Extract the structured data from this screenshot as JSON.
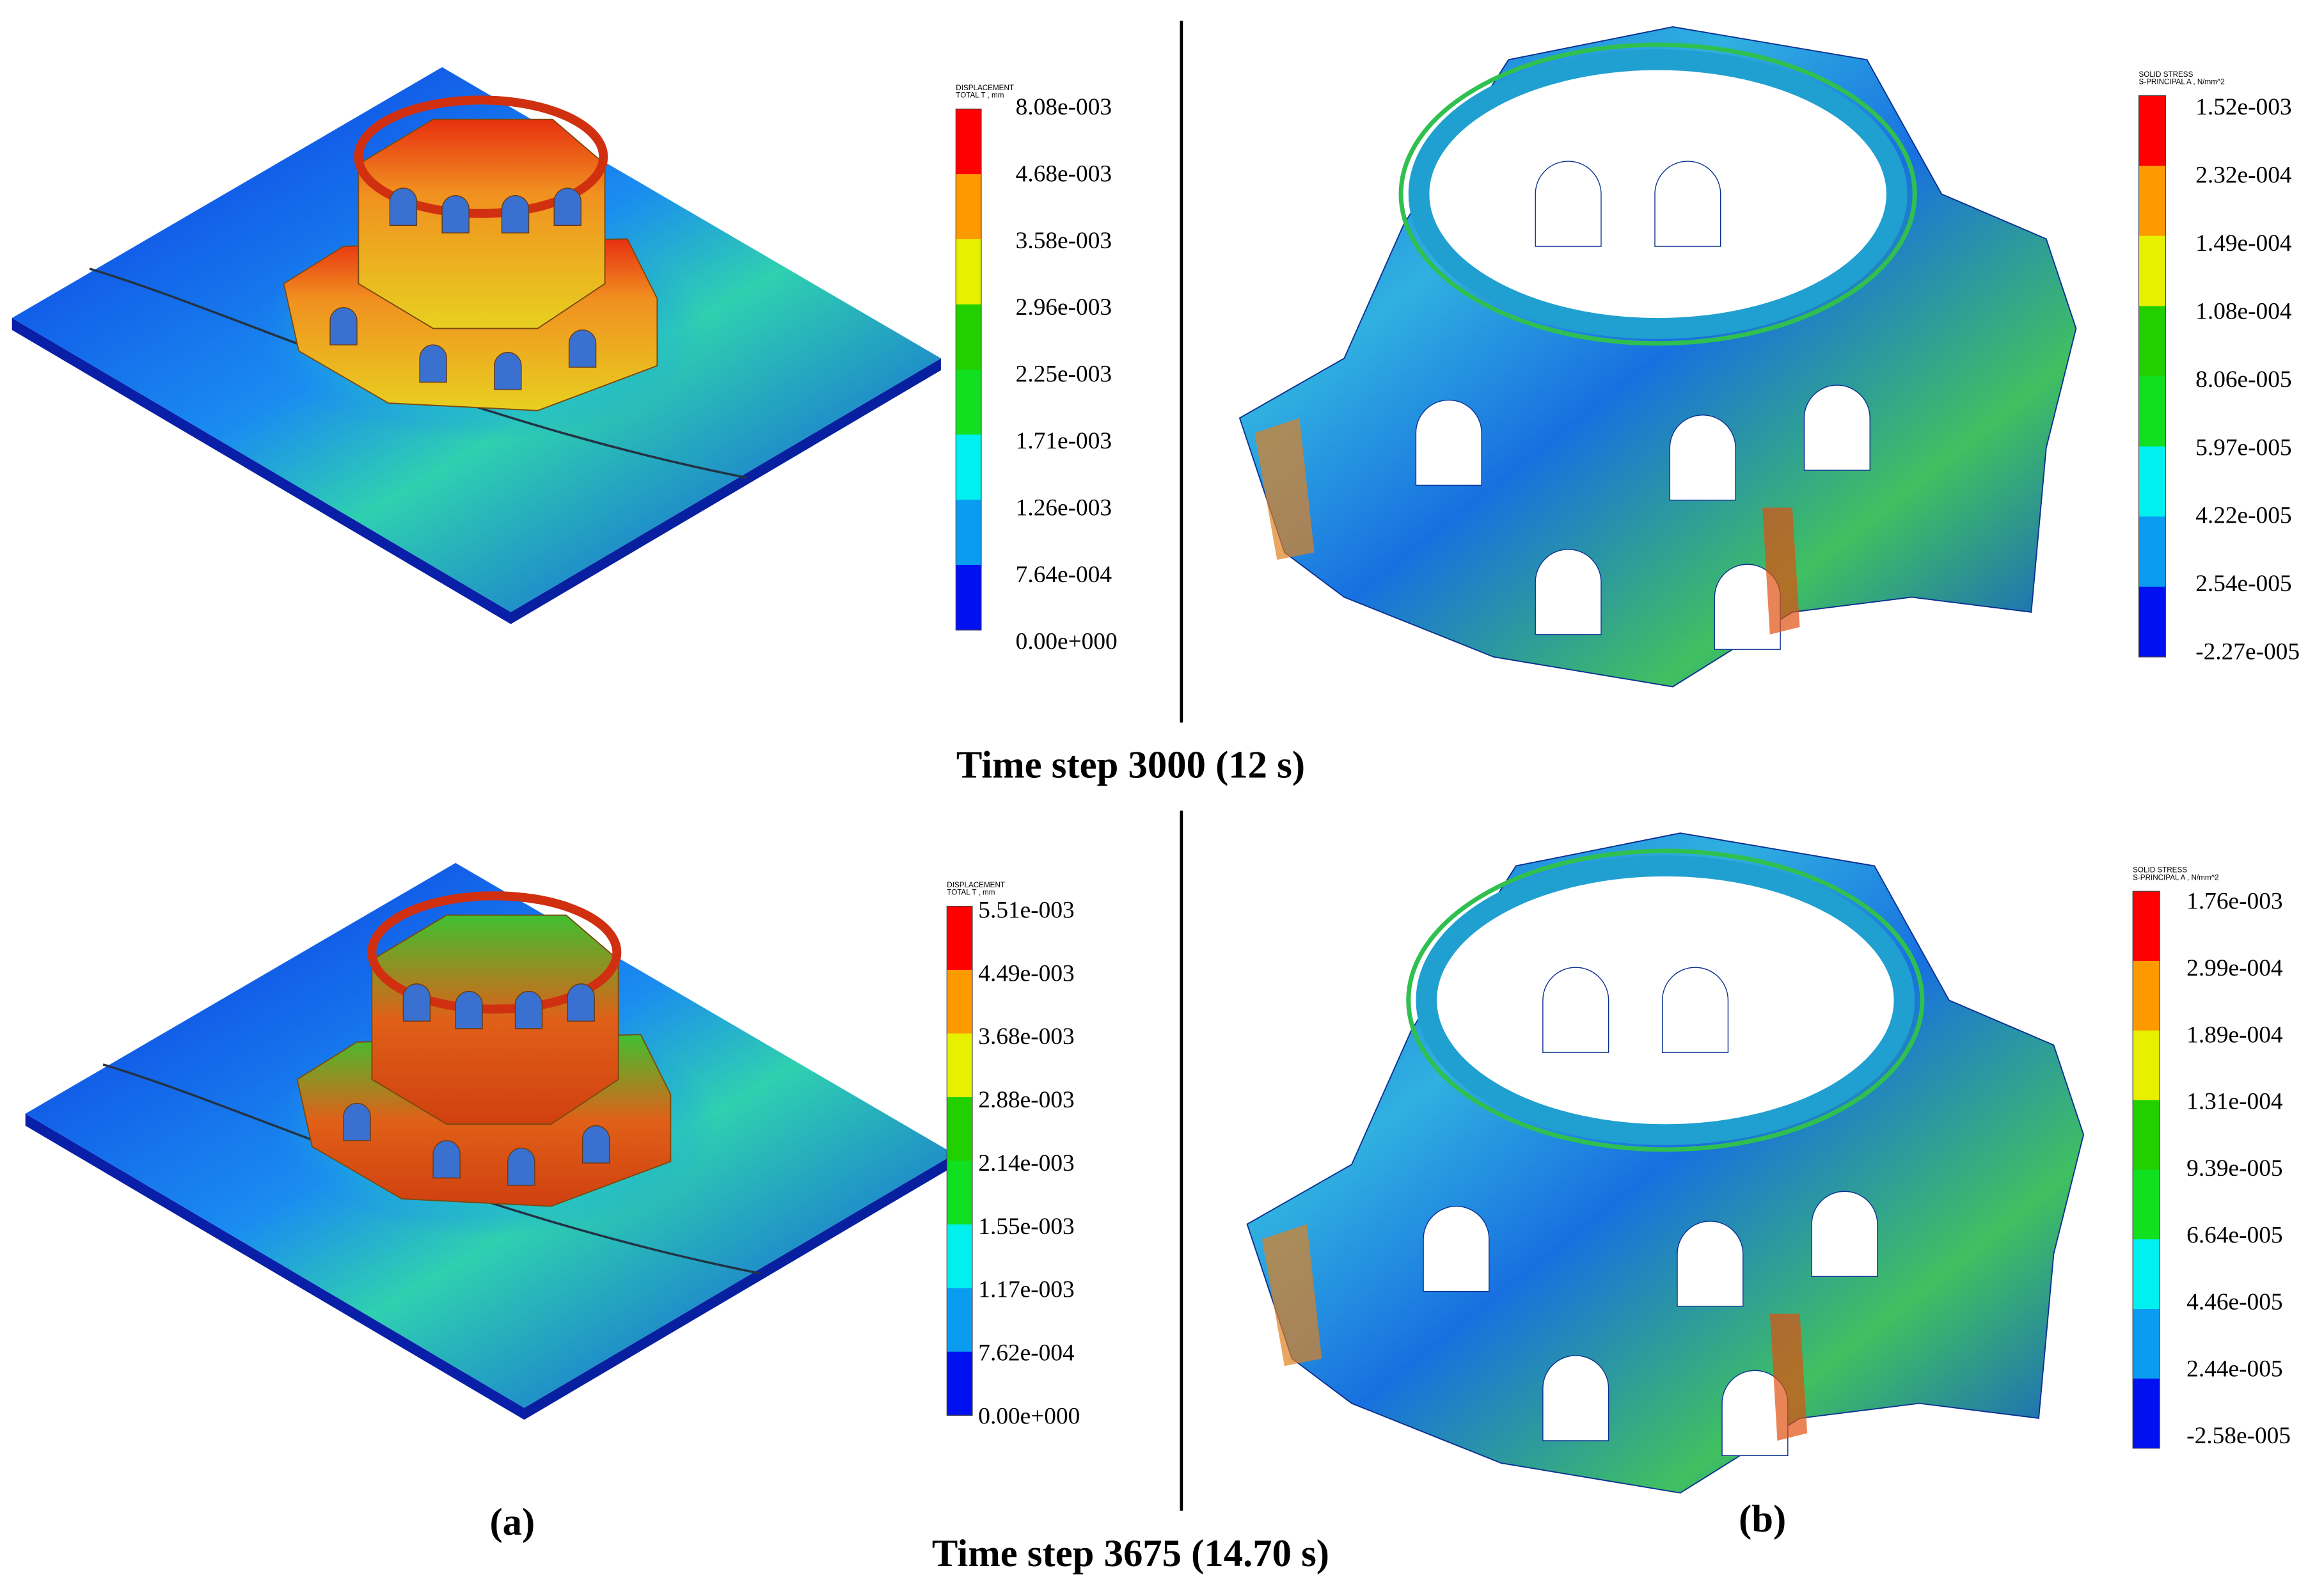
{
  "panels": [
    {
      "legend": {
        "heading": [
          "DISPLACEMENT",
          "TOTAL T , mm"
        ],
        "labels": [
          "8.08e-003",
          "4.68e-003",
          "3.58e-003",
          "2.96e-003",
          "2.25e-003",
          "1.71e-003",
          "1.26e-003",
          "7.64e-004",
          "0.00e+000"
        ]
      }
    },
    {
      "legend": {
        "heading": [
          "SOLID STRESS",
          "S-PRINCIPAL A , N/mm^2"
        ],
        "labels": [
          "1.52e-003",
          "2.32e-004",
          "1.49e-004",
          "1.08e-004",
          "8.06e-005",
          "5.97e-005",
          "4.22e-005",
          "2.54e-005",
          "-2.27e-005"
        ]
      }
    },
    {
      "legend": {
        "heading": [
          "DISPLACEMENT",
          "TOTAL T , mm"
        ],
        "labels": [
          "5.51e-003",
          "4.49e-003",
          "3.68e-003",
          "2.88e-003",
          "2.14e-003",
          "1.55e-003",
          "1.17e-003",
          "7.62e-004",
          "0.00e+000"
        ]
      }
    },
    {
      "legend": {
        "heading": [
          "SOLID STRESS",
          "S-PRINCIPAL A , N/mm^2"
        ],
        "labels": [
          "1.76e-003",
          "2.99e-004",
          "1.89e-004",
          "1.31e-004",
          "9.39e-005",
          "6.64e-005",
          "4.46e-005",
          "2.44e-005",
          "-2.58e-005"
        ]
      }
    }
  ],
  "captions": {
    "row1": "Time step 3000 (12 s)",
    "row2": "Time step 3675 (14.70 s)",
    "a": "(a)",
    "b": "(b)"
  }
}
